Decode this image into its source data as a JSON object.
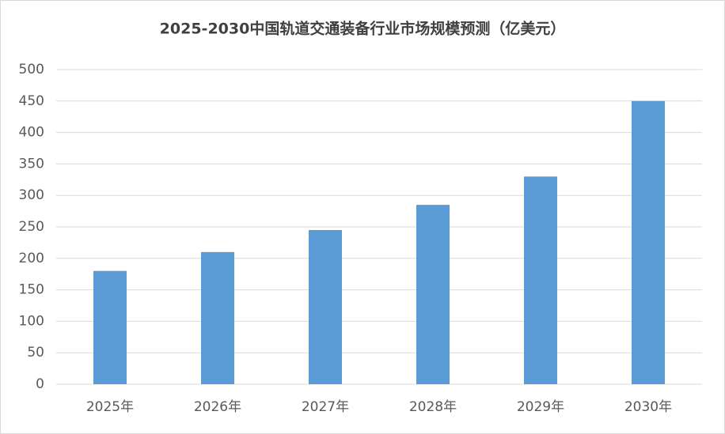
{
  "chart_data": {
    "type": "bar",
    "title": "2025-2030中国轨道交通装备行业市场规模预测（亿美元）",
    "categories": [
      "2025年",
      "2026年",
      "2027年",
      "2028年",
      "2029年",
      "2030年"
    ],
    "values": [
      180,
      210,
      245,
      285,
      330,
      450
    ],
    "color": "#5b9bd5",
    "ylim": [
      0,
      500
    ],
    "yticks": [
      0,
      50,
      100,
      150,
      200,
      250,
      300,
      350,
      400,
      450,
      500
    ],
    "grid": true
  }
}
